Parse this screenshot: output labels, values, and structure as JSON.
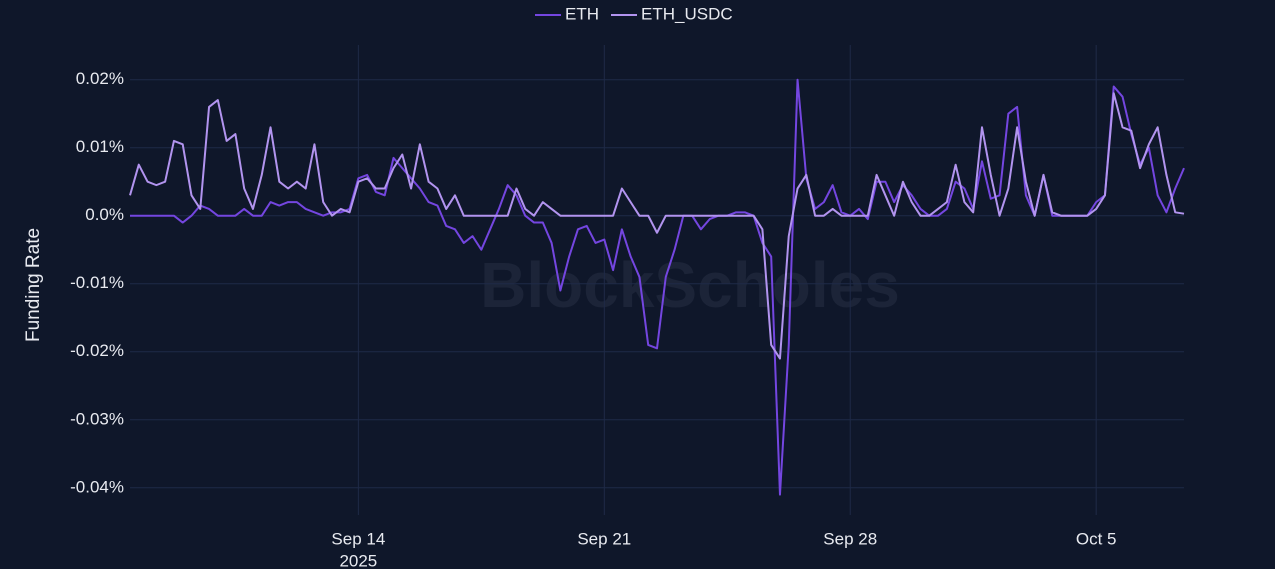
{
  "chart_data": {
    "type": "line",
    "watermark": "BlockScholes",
    "y_label": "Funding Rate",
    "legend": "top",
    "grid": true,
    "x_year": "2025",
    "xlim": [
      "2025-09-07T12:00",
      "2025-10-07T12:00"
    ],
    "xticks": [
      {
        "value": "2025-09-14T00:00",
        "label": "Sep 14"
      },
      {
        "value": "2025-09-21T00:00",
        "label": "Sep 21"
      },
      {
        "value": "2025-09-28T00:00",
        "label": "Sep 28"
      },
      {
        "value": "2025-10-05T00:00",
        "label": "Oct 5"
      }
    ],
    "ylim": [
      -0.044,
      0.0251
    ],
    "yticks": [
      {
        "value": 0.02,
        "label": "0.02%"
      },
      {
        "value": 0.01,
        "label": "0.01%"
      },
      {
        "value": 0,
        "label": "0.0%"
      },
      {
        "value": -0.01,
        "label": "-0.01%"
      },
      {
        "value": -0.02,
        "label": "-0.02%"
      },
      {
        "value": -0.03,
        "label": "-0.03%"
      },
      {
        "value": -0.04,
        "label": "-0.04%"
      }
    ],
    "x": [
      "2025-09-07T12:00",
      "2025-09-07T18:00",
      "2025-09-08T00:00",
      "2025-09-08T06:00",
      "2025-09-08T12:00",
      "2025-09-08T18:00",
      "2025-09-09T00:00",
      "2025-09-09T06:00",
      "2025-09-09T12:00",
      "2025-09-09T18:00",
      "2025-09-10T00:00",
      "2025-09-10T06:00",
      "2025-09-10T12:00",
      "2025-09-10T18:00",
      "2025-09-11T00:00",
      "2025-09-11T06:00",
      "2025-09-11T12:00",
      "2025-09-11T18:00",
      "2025-09-12T00:00",
      "2025-09-12T06:00",
      "2025-09-12T12:00",
      "2025-09-12T18:00",
      "2025-09-13T00:00",
      "2025-09-13T06:00",
      "2025-09-13T12:00",
      "2025-09-13T18:00",
      "2025-09-14T00:00",
      "2025-09-14T06:00",
      "2025-09-14T12:00",
      "2025-09-14T18:00",
      "2025-09-15T00:00",
      "2025-09-15T06:00",
      "2025-09-15T12:00",
      "2025-09-15T18:00",
      "2025-09-16T00:00",
      "2025-09-16T06:00",
      "2025-09-16T12:00",
      "2025-09-16T18:00",
      "2025-09-17T00:00",
      "2025-09-17T06:00",
      "2025-09-17T12:00",
      "2025-09-17T18:00",
      "2025-09-18T00:00",
      "2025-09-18T06:00",
      "2025-09-18T12:00",
      "2025-09-18T18:00",
      "2025-09-19T00:00",
      "2025-09-19T06:00",
      "2025-09-19T12:00",
      "2025-09-19T18:00",
      "2025-09-20T00:00",
      "2025-09-20T06:00",
      "2025-09-20T12:00",
      "2025-09-20T18:00",
      "2025-09-21T00:00",
      "2025-09-21T06:00",
      "2025-09-21T12:00",
      "2025-09-21T18:00",
      "2025-09-22T00:00",
      "2025-09-22T06:00",
      "2025-09-22T12:00",
      "2025-09-22T18:00",
      "2025-09-23T00:00",
      "2025-09-23T06:00",
      "2025-09-23T12:00",
      "2025-09-23T18:00",
      "2025-09-24T00:00",
      "2025-09-24T06:00",
      "2025-09-24T12:00",
      "2025-09-24T18:00",
      "2025-09-25T00:00",
      "2025-09-25T06:00",
      "2025-09-25T12:00",
      "2025-09-25T18:00",
      "2025-09-26T00:00",
      "2025-09-26T06:00",
      "2025-09-26T12:00",
      "2025-09-26T18:00",
      "2025-09-27T00:00",
      "2025-09-27T06:00",
      "2025-09-27T12:00",
      "2025-09-27T18:00",
      "2025-09-28T00:00",
      "2025-09-28T06:00",
      "2025-09-28T12:00",
      "2025-09-28T18:00",
      "2025-09-29T00:00",
      "2025-09-29T06:00",
      "2025-09-29T12:00",
      "2025-09-29T18:00",
      "2025-09-30T00:00",
      "2025-09-30T06:00",
      "2025-09-30T12:00",
      "2025-09-30T18:00",
      "2025-10-01T00:00",
      "2025-10-01T06:00",
      "2025-10-01T12:00",
      "2025-10-01T18:00",
      "2025-10-02T00:00",
      "2025-10-02T06:00",
      "2025-10-02T12:00",
      "2025-10-02T18:00",
      "2025-10-03T00:00",
      "2025-10-03T06:00",
      "2025-10-03T12:00",
      "2025-10-03T18:00",
      "2025-10-04T00:00",
      "2025-10-04T06:00",
      "2025-10-04T12:00",
      "2025-10-04T18:00",
      "2025-10-05T00:00",
      "2025-10-05T06:00",
      "2025-10-05T12:00",
      "2025-10-05T18:00",
      "2025-10-06T00:00",
      "2025-10-06T06:00",
      "2025-10-06T12:00",
      "2025-10-06T18:00",
      "2025-10-07T00:00",
      "2025-10-07T06:00",
      "2025-10-07T12:00"
    ],
    "series": [
      {
        "name": "ETH",
        "color": "#7446e0",
        "values": [
          0,
          0,
          0,
          0,
          0,
          0,
          -0.001,
          0,
          0.0015,
          0.001,
          0,
          0,
          0,
          0.001,
          0,
          0,
          0.002,
          0.0015,
          0.002,
          0.002,
          0.001,
          0.0005,
          0,
          0.0005,
          0.0005,
          0.001,
          0.0055,
          0.006,
          0.0035,
          0.003,
          0.0085,
          0.007,
          0.0055,
          0.004,
          0.002,
          0.0015,
          -0.0015,
          -0.002,
          -0.004,
          -0.003,
          -0.005,
          -0.002,
          0.001,
          0.0045,
          0.003,
          0,
          -0.001,
          -0.001,
          -0.004,
          -0.011,
          -0.006,
          -0.002,
          -0.0015,
          -0.004,
          -0.0035,
          -0.008,
          -0.002,
          -0.006,
          -0.009,
          -0.019,
          -0.0195,
          -0.009,
          -0.005,
          0,
          0,
          -0.002,
          -0.0005,
          0,
          0,
          0.0005,
          0.0005,
          0,
          -0.004,
          -0.006,
          -0.041,
          -0.019,
          0.02,
          0.0055,
          0.001,
          0.002,
          0.0045,
          0.0005,
          0,
          0.001,
          -0.0005,
          0.005,
          0.005,
          0.002,
          0.0045,
          0.003,
          0.001,
          0,
          0,
          0.001,
          0.005,
          0.004,
          0.001,
          0.008,
          0.0025,
          0.003,
          0.015,
          0.016,
          0.003,
          0,
          0.006,
          0,
          0,
          0,
          0,
          0,
          0.002,
          0.003,
          0.019,
          0.0175,
          0.012,
          0.0075,
          0.01,
          0.003,
          0.0005,
          0.004,
          0.007
        ]
      },
      {
        "name": "ETH_USDC",
        "color": "#b294ef",
        "values": [
          0.003,
          0.0075,
          0.005,
          0.0045,
          0.005,
          0.011,
          0.0105,
          0.003,
          0.001,
          0.016,
          0.017,
          0.011,
          0.012,
          0.004,
          0.001,
          0.006,
          0.013,
          0.005,
          0.004,
          0.005,
          0.004,
          0.0105,
          0.002,
          0,
          0.001,
          0.0005,
          0.005,
          0.0055,
          0.004,
          0.004,
          0.007,
          0.009,
          0.004,
          0.0105,
          0.005,
          0.004,
          0.001,
          0.003,
          0,
          0,
          0,
          0,
          0,
          0,
          0.004,
          0.001,
          0,
          0.002,
          0.001,
          0,
          0,
          0,
          0,
          0,
          0,
          0,
          0.004,
          0.002,
          0,
          0,
          -0.0025,
          0,
          0,
          0,
          0,
          0,
          0,
          0,
          0,
          0,
          0,
          0,
          -0.002,
          -0.019,
          -0.021,
          -0.003,
          0.004,
          0.006,
          0,
          0,
          0.001,
          0,
          0,
          0,
          0,
          0.006,
          0.003,
          0,
          0.005,
          0.002,
          0,
          0,
          0.001,
          0.002,
          0.0075,
          0.002,
          0.0005,
          0.013,
          0.006,
          0,
          0.004,
          0.013,
          0.005,
          0,
          0.006,
          0.0005,
          0,
          0,
          0,
          0,
          0.001,
          0.003,
          0.018,
          0.013,
          0.0125,
          0.007,
          0.0105,
          0.013,
          0.006,
          0.0005,
          0.0003
        ]
      }
    ]
  }
}
